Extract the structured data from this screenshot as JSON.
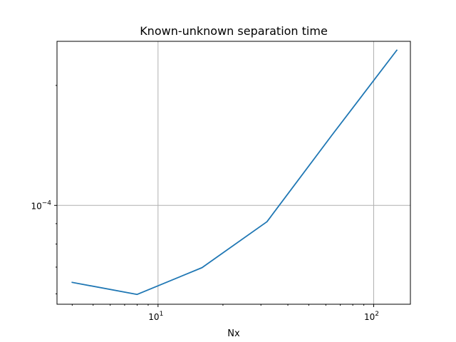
{
  "chart_data": {
    "type": "line",
    "title": "Known-unknown separation time",
    "xlabel": "Nx",
    "ylabel": "",
    "xscale": "log",
    "yscale": "log",
    "xlim": [
      3.4,
      148
    ],
    "ylim": [
      5.65e-05,
      0.000258
    ],
    "grid": true,
    "x_major_ticks": [
      {
        "value": 10,
        "base": "10",
        "exp": "1"
      },
      {
        "value": 100,
        "base": "10",
        "exp": "2"
      }
    ],
    "y_major_ticks": [
      {
        "value": 0.0001,
        "base": "10",
        "exp": "−4"
      }
    ],
    "x_minor_ticks": [
      4,
      5,
      6,
      7,
      8,
      9,
      20,
      30,
      40,
      50,
      60,
      70,
      80,
      90
    ],
    "y_minor_ticks": [
      6e-05,
      7e-05,
      8e-05,
      9e-05,
      0.0002
    ],
    "series": [
      {
        "color": "#1f77b4",
        "x": [
          4,
          8,
          16,
          32,
          64,
          128
        ],
        "y": [
          6.41e-05,
          5.98e-05,
          6.98e-05,
          9.1e-05,
          0.00015,
          0.0002451
        ]
      }
    ]
  }
}
